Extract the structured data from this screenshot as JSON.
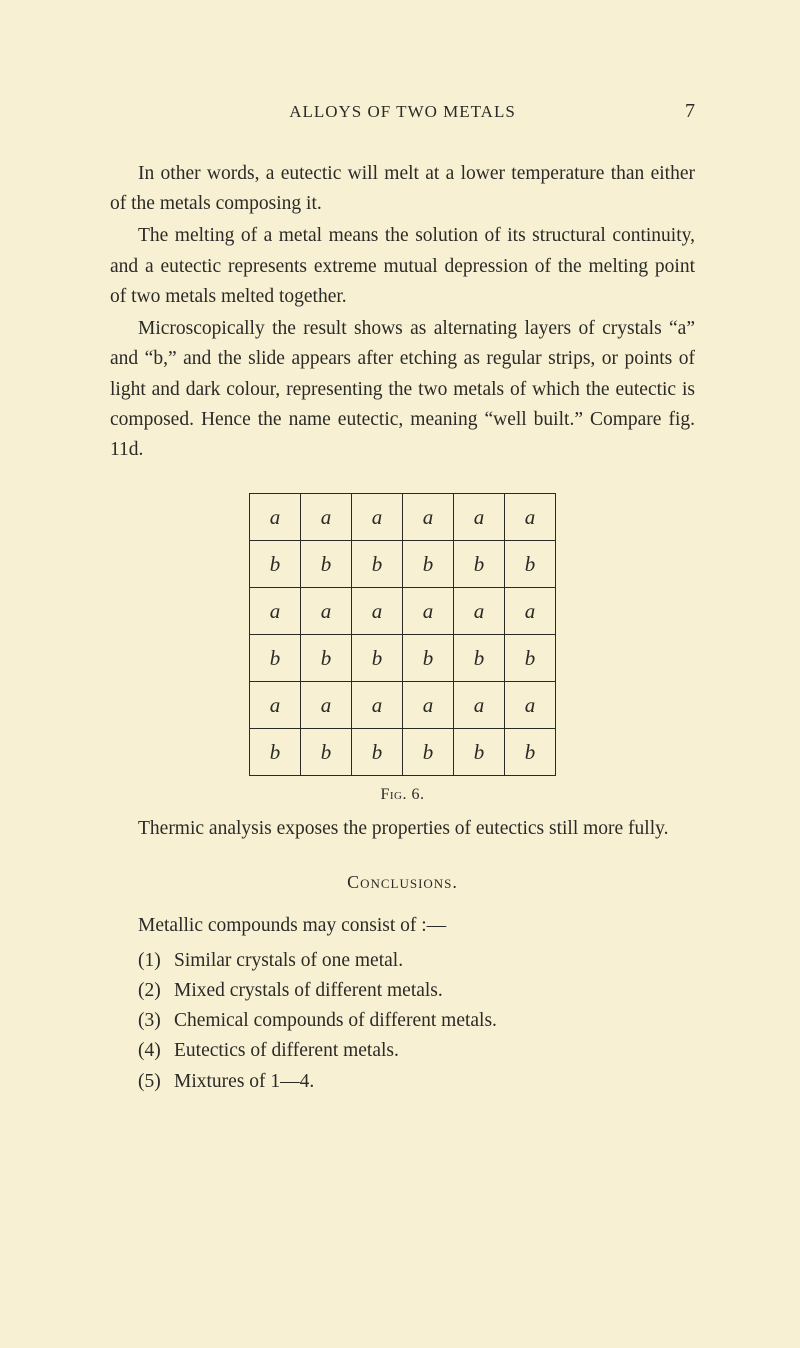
{
  "header": {
    "running_title": "ALLOYS OF TWO METALS",
    "page_number": "7"
  },
  "paragraphs": [
    "In other words, a eutectic will melt at a lower temperature than either of the metals composing it.",
    "The melting of a metal means the solution of its structural continuity, and a eutectic represents extreme mutual depression of the melting point of two metals melted together.",
    "Microscopically the result shows as alternating layers of crystals “a” and “b,” and the slide appears after etching as regular strips, or points of light and dark colour, representing the two metals of which the eutectic is composed. Hence the name eutectic, meaning “well built.” Compare fig. 11d."
  ],
  "figure": {
    "caption": "Fig. 6.",
    "cell_font_family": "cursive",
    "border_color": "#2a2a26",
    "rows": [
      [
        "a",
        "a",
        "a",
        "a",
        "a",
        "a"
      ],
      [
        "b",
        "b",
        "b",
        "b",
        "b",
        "b"
      ],
      [
        "a",
        "a",
        "a",
        "a",
        "a",
        "a"
      ],
      [
        "b",
        "b",
        "b",
        "b",
        "b",
        "b"
      ],
      [
        "a",
        "a",
        "a",
        "a",
        "a",
        "a"
      ],
      [
        "b",
        "b",
        "b",
        "b",
        "b",
        "b"
      ]
    ]
  },
  "after_figure": "Thermic analysis exposes the properties of eutectics still more fully.",
  "conclusions": {
    "heading": "Conclusions.",
    "intro": "Metallic compounds may consist of :—",
    "items": [
      {
        "num": "(1)",
        "text": "Similar crystals of one metal."
      },
      {
        "num": "(2)",
        "text": "Mixed crystals of different metals."
      },
      {
        "num": "(3)",
        "text": "Chemical compounds of different metals."
      },
      {
        "num": "(4)",
        "text": "Eutectics of different metals."
      },
      {
        "num": "(5)",
        "text": "Mixtures of 1—4."
      }
    ]
  },
  "colors": {
    "background": "#f8f0d3",
    "text": "#2a2a26"
  }
}
